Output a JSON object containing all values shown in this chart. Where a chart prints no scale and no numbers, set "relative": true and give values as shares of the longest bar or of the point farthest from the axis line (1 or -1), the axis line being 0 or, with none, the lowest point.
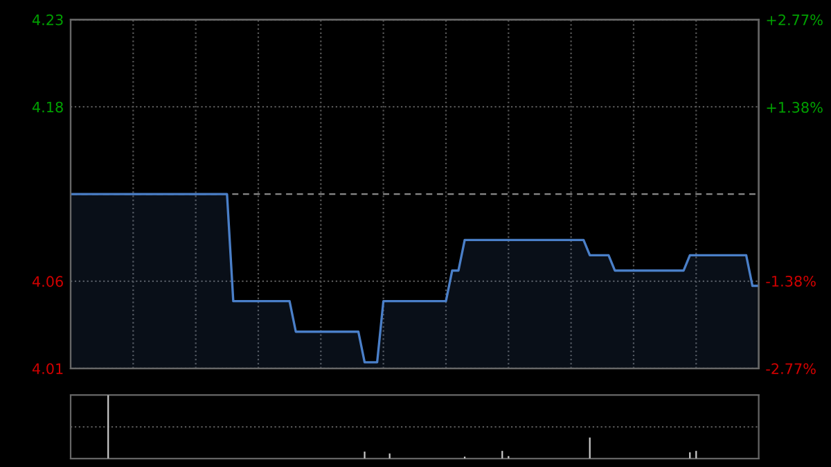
{
  "chart_data": [
    {
      "type": "area",
      "categories": [
        null,
        null,
        null,
        null,
        null,
        null,
        null,
        null,
        null,
        null,
        null,
        null,
        null,
        null,
        null,
        null,
        null,
        null,
        null,
        null,
        null,
        null,
        null,
        null,
        null,
        null,
        null,
        null,
        null,
        null,
        null,
        null,
        null,
        null,
        null,
        null,
        null,
        null,
        null,
        null,
        null,
        null,
        null,
        null,
        null,
        null,
        null,
        null,
        null,
        null,
        null,
        null,
        null,
        null,
        null,
        null,
        null,
        null,
        null,
        null,
        null,
        null,
        null,
        null,
        null,
        null,
        null,
        null,
        null,
        null,
        null,
        null,
        null,
        null,
        null,
        null,
        null,
        null,
        null,
        null,
        null,
        null,
        null,
        null,
        null,
        null,
        null,
        null,
        null,
        null,
        null,
        null,
        null,
        null,
        null,
        null,
        null,
        null,
        null,
        null,
        null,
        null,
        null,
        null,
        null,
        null,
        null,
        null,
        null,
        null,
        null
      ],
      "series": [
        {
          "color": "#4a7fc8",
          "values": [
            4.12,
            4.12,
            4.12,
            4.12,
            4.12,
            4.12,
            4.12,
            4.12,
            4.12,
            4.12,
            4.12,
            4.12,
            4.12,
            4.12,
            4.12,
            4.12,
            4.12,
            4.12,
            4.12,
            4.12,
            4.12,
            4.12,
            4.12,
            4.12,
            4.12,
            4.12,
            4.05,
            4.05,
            4.05,
            4.05,
            4.05,
            4.05,
            4.05,
            4.05,
            4.05,
            4.05,
            4.03,
            4.03,
            4.03,
            4.03,
            4.03,
            4.03,
            4.03,
            4.03,
            4.03,
            4.03,
            4.03,
            4.01,
            4.01,
            4.01,
            4.05,
            4.05,
            4.05,
            4.05,
            4.05,
            4.05,
            4.05,
            4.05,
            4.05,
            4.05,
            4.05,
            4.07,
            4.07,
            4.09,
            4.09,
            4.09,
            4.09,
            4.09,
            4.09,
            4.09,
            4.09,
            4.09,
            4.09,
            4.09,
            4.09,
            4.09,
            4.09,
            4.09,
            4.09,
            4.09,
            4.09,
            4.09,
            4.09,
            4.08,
            4.08,
            4.08,
            4.08,
            4.07,
            4.07,
            4.07,
            4.07,
            4.07,
            4.07,
            4.07,
            4.07,
            4.07,
            4.07,
            4.07,
            4.07,
            4.08,
            4.08,
            4.08,
            4.08,
            4.08,
            4.08,
            4.08,
            4.08,
            4.08,
            4.08,
            4.06,
            4.06
          ]
        }
      ],
      "ylim": [
        4.006,
        4.234
      ],
      "yticks": [
        {
          "value": 4.006,
          "label": "4.01"
        },
        {
          "value": 4.063,
          "label": "4.06"
        },
        {
          "value": 4.177,
          "label": "4.18"
        },
        {
          "value": 4.234,
          "label": "4.23"
        }
      ],
      "y2lim": [
        -2.77,
        2.77
      ],
      "y2ticks": [
        {
          "value": -2.77,
          "label": "-2.77%"
        },
        {
          "value": -1.38,
          "label": "-1.38%"
        },
        {
          "value": 1.38,
          "label": "+1.38%"
        },
        {
          "value": 2.77,
          "label": "+2.77%"
        }
      ],
      "ref_lines": [
        {
          "axis": "y",
          "value": 4.12,
          "color": "#888888",
          "line_style": "dashed"
        }
      ],
      "grid": true
    },
    {
      "type": "bar",
      "relative": true,
      "color": "#c8c8c8",
      "ref_lines": [
        {
          "axis": "y",
          "value": 0.5,
          "color": "#555555",
          "line_style": "dotted"
        }
      ],
      "categories": [
        null,
        null,
        null,
        null,
        null,
        null,
        null,
        null,
        null,
        null,
        null,
        null,
        null,
        null,
        null,
        null,
        null,
        null,
        null,
        null,
        null,
        null,
        null,
        null,
        null,
        null,
        null,
        null,
        null,
        null,
        null,
        null,
        null,
        null,
        null,
        null,
        null,
        null,
        null,
        null,
        null,
        null,
        null,
        null,
        null,
        null,
        null,
        null,
        null,
        null,
        null,
        null,
        null,
        null,
        null,
        null,
        null,
        null,
        null,
        null,
        null,
        null,
        null,
        null,
        null,
        null,
        null,
        null,
        null,
        null,
        null,
        null,
        null,
        null,
        null,
        null,
        null,
        null,
        null,
        null,
        null,
        null,
        null,
        null,
        null,
        null,
        null,
        null,
        null,
        null,
        null,
        null,
        null,
        null,
        null,
        null,
        null,
        null,
        null,
        null,
        null,
        null,
        null,
        null,
        null,
        null,
        null,
        null,
        null,
        null,
        null
      ],
      "values": [
        0,
        0,
        0,
        0,
        0,
        0,
        1,
        0,
        0,
        0,
        0,
        0,
        0,
        0,
        0,
        0,
        0,
        0,
        0,
        0,
        0,
        0,
        0,
        0,
        0,
        0,
        0,
        0,
        0,
        0,
        0,
        0,
        0,
        0,
        0,
        0,
        0,
        0,
        0,
        0,
        0,
        0,
        0,
        0,
        0,
        0,
        0,
        0.11,
        0,
        0,
        0,
        0.08,
        0,
        0,
        0,
        0,
        0,
        0,
        0,
        0,
        0,
        0,
        0,
        0.03,
        0,
        0,
        0,
        0,
        0,
        0.12,
        0.04,
        0,
        0,
        0,
        0,
        0,
        0,
        0,
        0,
        0,
        0,
        0,
        0,
        0.33,
        0,
        0,
        0,
        0,
        0,
        0,
        0,
        0,
        0,
        0,
        0,
        0,
        0,
        0,
        0,
        0.1,
        0.12,
        0,
        0,
        0,
        0,
        0,
        0,
        0,
        0,
        0,
        0
      ]
    }
  ]
}
